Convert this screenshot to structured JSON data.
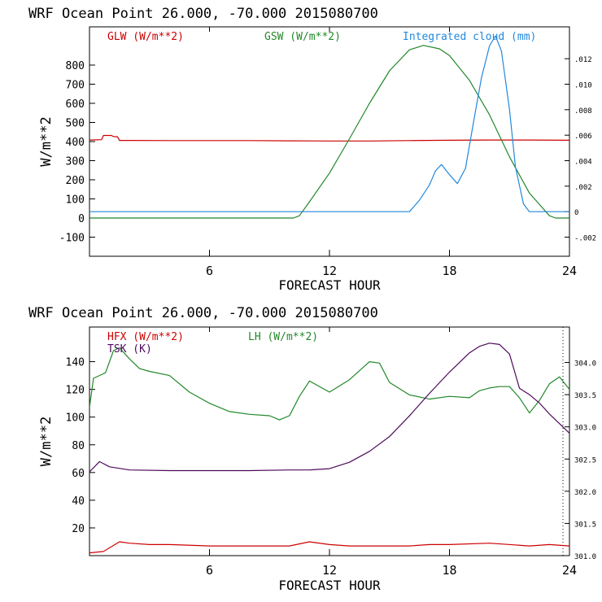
{
  "colors": {
    "axis": "#000000",
    "glw": "#cc0000",
    "gsw": "#22882a",
    "cloud": "#2288dd",
    "hfx": "#cc0000",
    "lh": "#22882a",
    "tsk": "#4d0a5a"
  },
  "chart_data": [
    {
      "type": "line",
      "title": "WRF   Ocean Point   26.000, -70.000  2015080700",
      "xlabel": "FORECAST HOUR",
      "ylabel": "W/m**2",
      "xlim": [
        0,
        24
      ],
      "ylim": [
        -200,
        1000
      ],
      "xticks": [
        6,
        12,
        18,
        24
      ],
      "xtick_labels": [
        "6",
        "12",
        "18",
        "24"
      ],
      "yticks": [
        -100,
        0,
        100,
        200,
        300,
        400,
        500,
        600,
        700,
        800
      ],
      "ytick_labels": [
        "-100",
        "0",
        "100",
        "200",
        "300",
        "400",
        "500",
        "600",
        "700",
        "800"
      ],
      "y2lim": [
        -0.0035,
        0.0145
      ],
      "y2ticks": [
        -0.002,
        0,
        0.002,
        0.004,
        0.006,
        0.008,
        0.01,
        0.012
      ],
      "y2tick_labels": [
        "-.002",
        "0",
        ".002",
        ".004",
        ".006",
        ".008",
        ".010",
        ".012"
      ],
      "legend": [
        "GLW (W/m**2)",
        "GSW (W/m**2)",
        "Integrated cloud (mm)"
      ],
      "series": [
        {
          "name": "GLW (W/m**2)",
          "color_key": "glw",
          "axis": "left",
          "x": [
            0,
            0.6,
            0.7,
            1.1,
            1.2,
            1.4,
            1.5,
            2,
            4,
            6,
            8,
            10,
            12,
            14,
            16,
            18,
            20,
            22,
            24
          ],
          "y": [
            408,
            410,
            432,
            432,
            426,
            425,
            406,
            406,
            405,
            405,
            405,
            404,
            403,
            403,
            405,
            407,
            408,
            408,
            407
          ]
        },
        {
          "name": "GSW (W/m**2)",
          "color_key": "gsw",
          "axis": "left",
          "x": [
            0,
            10.2,
            10.5,
            11,
            12,
            13,
            14,
            15,
            16,
            16.7,
            17.5,
            18,
            19,
            20,
            21,
            22,
            23,
            23.3,
            24
          ],
          "y": [
            0,
            0,
            12,
            85,
            235,
            415,
            600,
            770,
            880,
            903,
            885,
            850,
            720,
            540,
            320,
            130,
            12,
            0,
            0
          ]
        },
        {
          "name": "Integrated cloud (mm)",
          "color_key": "cloud",
          "axis": "right",
          "x": [
            0,
            16,
            16.5,
            17,
            17.3,
            17.6,
            18,
            18.4,
            18.8,
            19.2,
            19.6,
            20,
            20.3,
            20.6,
            21,
            21.3,
            21.7,
            22,
            22.5,
            24
          ],
          "y": [
            0,
            0,
            0.0009,
            0.0021,
            0.0032,
            0.0037,
            0.0029,
            0.0022,
            0.0034,
            0.007,
            0.0105,
            0.013,
            0.0138,
            0.0126,
            0.008,
            0.0035,
            0.0006,
            0,
            0,
            0
          ]
        }
      ]
    },
    {
      "type": "line",
      "title": "WRF   Ocean Point   26.000, -70.000  2015080700",
      "xlabel": "FORECAST HOUR",
      "ylabel": "W/m**2",
      "xlim": [
        0,
        24
      ],
      "ylim": [
        0,
        165
      ],
      "xticks": [
        6,
        12,
        18,
        24
      ],
      "xtick_labels": [
        "6",
        "12",
        "18",
        "24"
      ],
      "yticks": [
        20,
        40,
        60,
        80,
        100,
        120,
        140
      ],
      "ytick_labels": [
        "20",
        "40",
        "60",
        "80",
        "100",
        "120",
        "140"
      ],
      "y2lim": [
        301.0,
        304.55
      ],
      "y2ticks": [
        301.0,
        301.5,
        302.0,
        302.5,
        303.0,
        303.5,
        304.0
      ],
      "y2tick_labels": [
        "301.0",
        "301.5",
        "302.0",
        "302.5",
        "303.0",
        "303.5",
        "304.0"
      ],
      "legend": [
        "HFX (W/m**2)",
        "LH  (W/m**2)",
        "TSK (K)"
      ],
      "series": [
        {
          "name": "HFX (W/m**2)",
          "color_key": "hfx",
          "axis": "left",
          "x": [
            0,
            0.7,
            1.5,
            2,
            3,
            4,
            6,
            8,
            10,
            11,
            12,
            13,
            14,
            16,
            17,
            18,
            20,
            22,
            23,
            24
          ],
          "y": [
            2,
            3,
            10,
            9,
            8,
            8,
            7,
            7,
            7,
            10,
            8,
            7,
            7,
            7,
            8,
            8,
            9,
            7,
            8,
            7
          ]
        },
        {
          "name": "LH  (W/m**2)",
          "color_key": "lh",
          "axis": "left",
          "x": [
            0,
            0.2,
            0.8,
            1.2,
            1.5,
            2,
            2.5,
            3,
            4,
            5,
            6,
            7,
            8,
            9,
            9.5,
            10,
            10.5,
            11,
            12,
            13,
            14,
            14.5,
            15,
            16,
            17,
            18,
            19,
            19.5,
            20,
            20.5,
            21,
            21.5,
            22,
            22.5,
            23,
            23.5,
            24
          ],
          "y": [
            107,
            128,
            132,
            148,
            150,
            142,
            135,
            133,
            130,
            118,
            110,
            104,
            102,
            101,
            98,
            101,
            115,
            126,
            118,
            127,
            140,
            139,
            125,
            116,
            113,
            115,
            114,
            119,
            121,
            122,
            122,
            114,
            103,
            112,
            124,
            129,
            120
          ]
        },
        {
          "name": "TSK (K)",
          "color_key": "tsk",
          "axis": "right",
          "x": [
            0,
            0.5,
            1,
            2,
            4,
            6,
            8,
            10,
            11,
            12,
            13,
            14,
            15,
            16,
            17,
            18,
            19,
            19.5,
            20,
            20.5,
            21,
            21.5,
            22,
            22.5,
            23,
            23.5,
            24
          ],
          "y": [
            302.3,
            302.46,
            302.38,
            302.33,
            302.32,
            302.32,
            302.32,
            302.33,
            302.33,
            302.35,
            302.45,
            302.62,
            302.85,
            303.17,
            303.52,
            303.85,
            304.15,
            304.25,
            304.3,
            304.28,
            304.13,
            303.6,
            303.5,
            303.37,
            303.2,
            303.05,
            302.9
          ]
        }
      ]
    }
  ]
}
